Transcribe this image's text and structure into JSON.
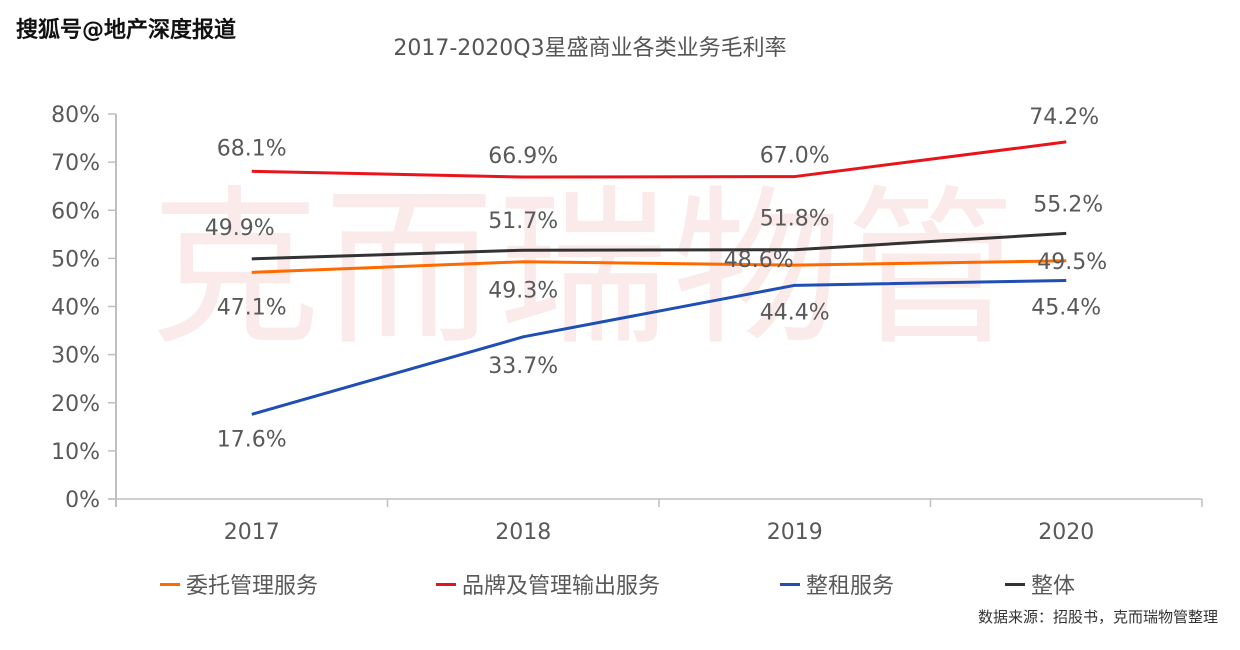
{
  "source_tag": "搜狐号@地产深度报道",
  "watermark": "克而瑞物管",
  "note": "数据来源：招股书，克而瑞物管整理",
  "chart_data": {
    "type": "line",
    "title": "2017-2020Q3星盛商业各类业务毛利率",
    "xlabel": "",
    "ylabel": "",
    "categories": [
      "2017",
      "2018",
      "2019",
      "2020"
    ],
    "ylim": [
      0,
      80
    ],
    "yticks": [
      "0%",
      "10%",
      "20%",
      "30%",
      "40%",
      "50%",
      "60%",
      "70%",
      "80%"
    ],
    "grid": false,
    "legend_position": "bottom",
    "series": [
      {
        "name": "委托管理服务",
        "color": "#ff6a00",
        "values": [
          47.1,
          49.3,
          48.6,
          49.5
        ],
        "labels": [
          "47.1%",
          "49.3%",
          "48.6%",
          "49.5%"
        ]
      },
      {
        "name": "品牌及管理输出服务",
        "color": "#e8141b",
        "values": [
          68.1,
          66.9,
          67.0,
          74.2
        ],
        "labels": [
          "68.1%",
          "66.9%",
          "67.0%",
          "74.2%"
        ]
      },
      {
        "name": "整租服务",
        "color": "#1f4eb4",
        "values": [
          17.6,
          33.7,
          44.4,
          45.4
        ],
        "labels": [
          "17.6%",
          "33.7%",
          "44.4%",
          "45.4%"
        ]
      },
      {
        "name": "整体",
        "color": "#333333",
        "values": [
          49.9,
          51.7,
          51.8,
          55.2
        ],
        "labels": [
          "49.9%",
          "51.7%",
          "51.8%",
          "55.2%"
        ]
      }
    ]
  }
}
